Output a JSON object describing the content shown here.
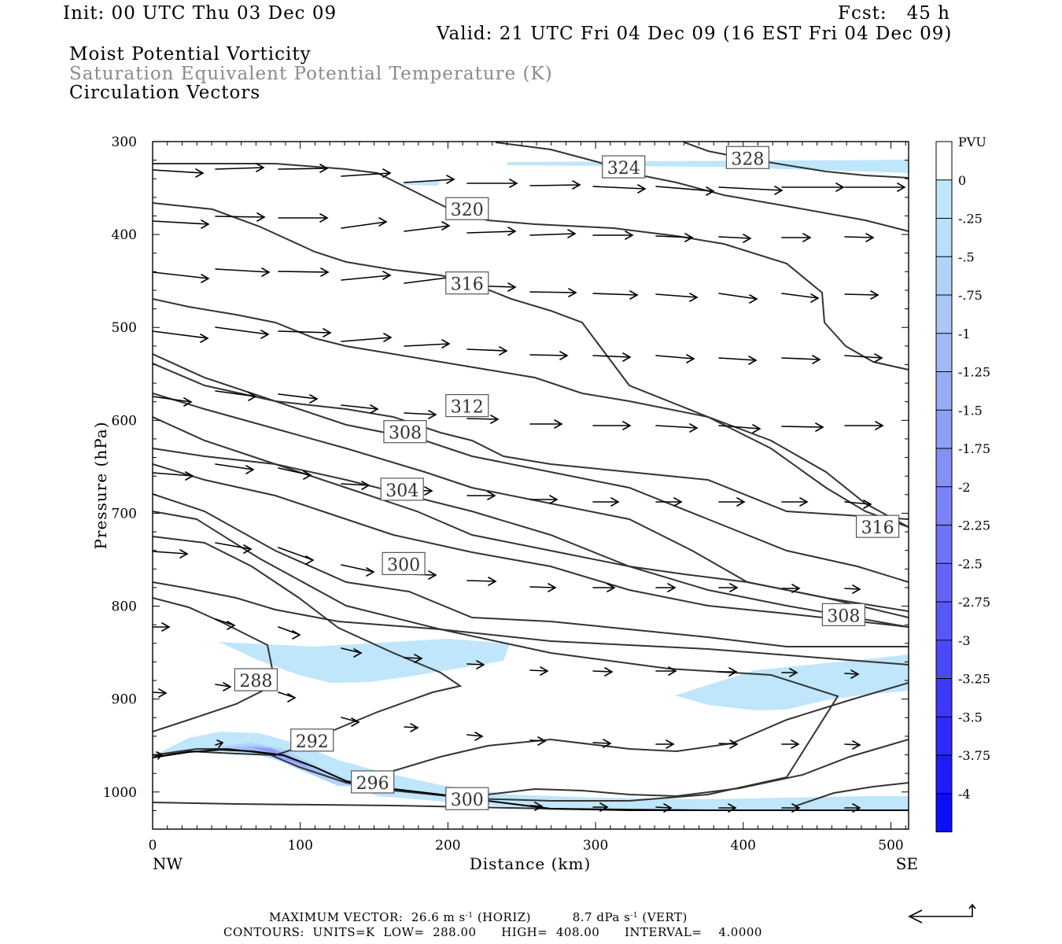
{
  "header": {
    "init": "Init: 00 UTC Thu 03 Dec 09",
    "fcst": "Fcst:   45 h",
    "valid": "Valid: 21 UTC Fri 04 Dec 09 (16 EST Fri 04 Dec 09)"
  },
  "titles": {
    "field1": "Moist Potential Vorticity",
    "field2": "Saturation Equivalent Potential Temperature (K)",
    "field3": "Circulation Vectors"
  },
  "footer": {
    "max_vector_label": "MAXIMUM VECTOR:",
    "horiz_value": "26.6 m s",
    "horiz_unit": "(HORIZ)",
    "vert_value": "8.7 dPa s",
    "vert_unit": "(VERT)",
    "exponent": "-1",
    "contours_label": "CONTOURS:",
    "units": "UNITS=K",
    "low": "LOW=  288.00",
    "high": "HIGH=  408.00",
    "interval": "INTERVAL=    4.0000"
  },
  "chart_data": {
    "type": "cross-section",
    "xlabel": "Distance (km)",
    "ylabel": "Pressure (hPa)",
    "x_ticks": [
      0,
      100,
      200,
      300,
      400,
      500
    ],
    "y_ticks": [
      300,
      400,
      500,
      600,
      700,
      800,
      900,
      1000
    ],
    "xlim": [
      0,
      512
    ],
    "ylim_pressure": [
      300,
      1040
    ],
    "x_end_labels": {
      "left": "NW",
      "right": "SE"
    },
    "colorbar": {
      "title": "PVU",
      "labels": [
        "0",
        "-.25",
        "-.5",
        "-.75",
        "-1",
        "-1.25",
        "-1.5",
        "-1.75",
        "-2",
        "-2.25",
        "-2.5",
        "-2.75",
        "-3",
        "-3.25",
        "-3.5",
        "-3.75",
        "-4"
      ],
      "colors": [
        "#ffffff",
        "#bfe6fb",
        "#b9def9",
        "#b2d3f7",
        "#aac7f6",
        "#a1baf5",
        "#98adf5",
        "#8e9ff5",
        "#8490f5",
        "#7a82f6",
        "#6f73f7",
        "#6465f8",
        "#5857f9",
        "#4b48fa",
        "#3e39fb",
        "#302afc",
        "#1f1bfd",
        "#0c0cfe"
      ]
    },
    "theta_e_labels": [
      {
        "value": "288",
        "x": 70,
        "p": 880
      },
      {
        "value": "292",
        "x": 108,
        "p": 945
      },
      {
        "value": "296",
        "x": 149,
        "p": 990
      },
      {
        "value": "300",
        "x": 213,
        "p": 1008
      },
      {
        "value": "300",
        "x": 170,
        "p": 755
      },
      {
        "value": "304",
        "x": 169,
        "p": 675
      },
      {
        "value": "308",
        "x": 171,
        "p": 613
      },
      {
        "value": "308",
        "x": 468,
        "p": 810
      },
      {
        "value": "312",
        "x": 213,
        "p": 585
      },
      {
        "value": "316",
        "x": 213,
        "p": 453
      },
      {
        "value": "316",
        "x": 491,
        "p": 715
      },
      {
        "value": "320",
        "x": 213,
        "p": 373
      },
      {
        "value": "324",
        "x": 319,
        "p": 328
      },
      {
        "value": "328",
        "x": 403,
        "p": 318
      }
    ]
  }
}
